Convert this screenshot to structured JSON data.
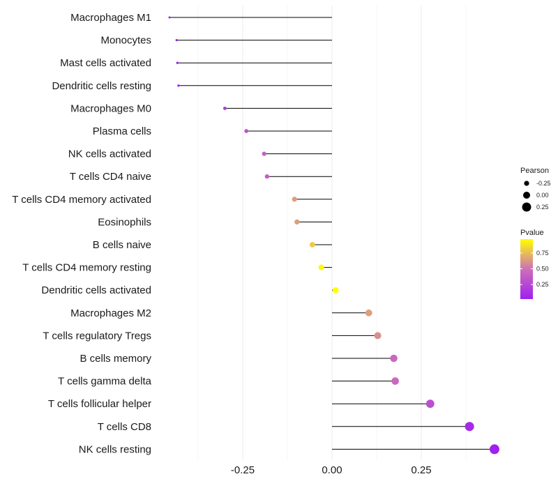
{
  "chart_data": {
    "type": "lollipop",
    "title": "",
    "xlabel": "",
    "ylabel": "",
    "xlim": [
      -0.455,
      0.46
    ],
    "x_ticks": [
      -0.25,
      0,
      0.25
    ],
    "x_tick_labels": [
      "-0.25",
      "0.00",
      "0.25"
    ],
    "grid": true,
    "categories": [
      "Macrophages M1",
      "Monocytes",
      "Mast cells activated",
      "Dendritic cells resting",
      "Macrophages M0",
      "Plasma cells",
      "NK cells activated",
      "T cells CD4 naive",
      "T cells CD4 memory activated",
      "Eosinophils",
      "B cells naive",
      "T cells CD4 memory resting",
      "Dendritic cells activated",
      "Macrophages M2",
      "T cells regulatory  Tregs ",
      "B cells memory",
      "T cells gamma delta",
      "T cells follicular helper",
      "T cells CD8",
      "NK cells resting"
    ],
    "series": [
      {
        "name": "Pearson",
        "values": [
          -0.455,
          -0.435,
          -0.433,
          -0.43,
          -0.3,
          -0.24,
          -0.19,
          -0.182,
          -0.105,
          -0.098,
          -0.055,
          -0.03,
          0.01,
          0.103,
          0.128,
          0.173,
          0.177,
          0.275,
          0.385,
          0.455
        ]
      },
      {
        "name": "Pvalue",
        "values": [
          0.02,
          0.03,
          0.03,
          0.03,
          0.2,
          0.32,
          0.4,
          0.4,
          0.65,
          0.65,
          0.8,
          0.95,
          0.97,
          0.65,
          0.6,
          0.45,
          0.45,
          0.3,
          0.08,
          0.02
        ]
      }
    ],
    "legend_position": "right",
    "legend_size": {
      "title": "Pearson",
      "values": [
        -0.25,
        0,
        0.25
      ],
      "labels": [
        "-0.25",
        "0.00",
        "0.25"
      ]
    },
    "legend_color": {
      "title": "Pvalue",
      "range": [
        0.02,
        0.97
      ],
      "ticks": [
        0.25,
        0.5,
        0.75
      ],
      "tick_labels": [
        "0.25",
        "0.50",
        "0.75"
      ],
      "low_color": "#a020f0",
      "mid_color": "#cd70b8",
      "high_color": "#ffff00"
    }
  }
}
